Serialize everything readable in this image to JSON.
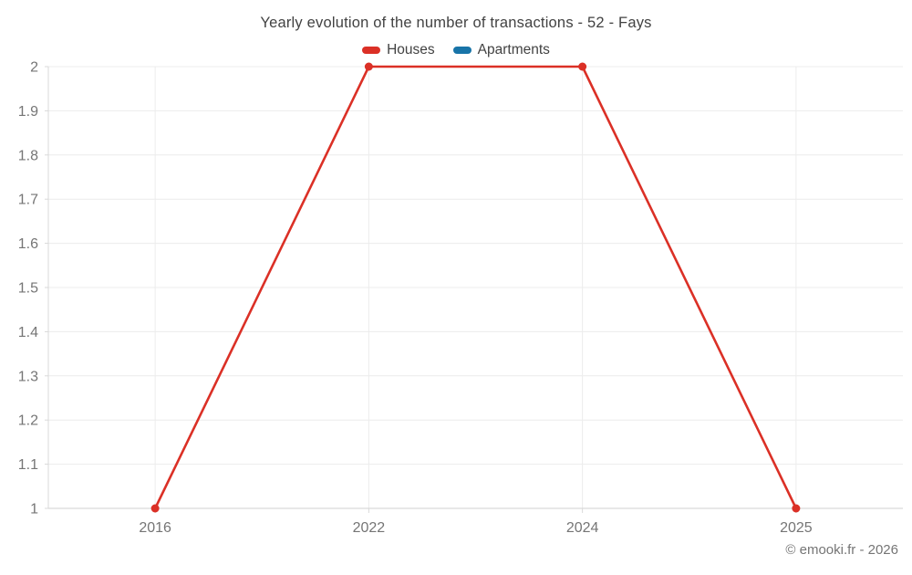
{
  "footer": "© emooki.fr - 2026",
  "colors": {
    "houses": "#db3026",
    "apartments": "#1874a8",
    "grid": "#ececec",
    "axis": "#d9d9d9",
    "tick_label": "#757575",
    "title_text": "#424242"
  },
  "chart_data": {
    "type": "line",
    "title": "Yearly evolution of the number of transactions - 52 - Fays",
    "categories": [
      "2016",
      "2022",
      "2024",
      "2025"
    ],
    "series": [
      {
        "name": "Houses",
        "color": "#db3026",
        "values": [
          1,
          2,
          2,
          1
        ]
      },
      {
        "name": "Apartments",
        "color": "#1874a8",
        "values": []
      }
    ],
    "xlabel": "",
    "ylabel": "",
    "ylim": [
      1,
      2
    ],
    "yticks": [
      "1",
      "1.1",
      "1.2",
      "1.3",
      "1.4",
      "1.5",
      "1.6",
      "1.7",
      "1.8",
      "1.9",
      "2"
    ],
    "grid": true,
    "legend_position": "top"
  }
}
